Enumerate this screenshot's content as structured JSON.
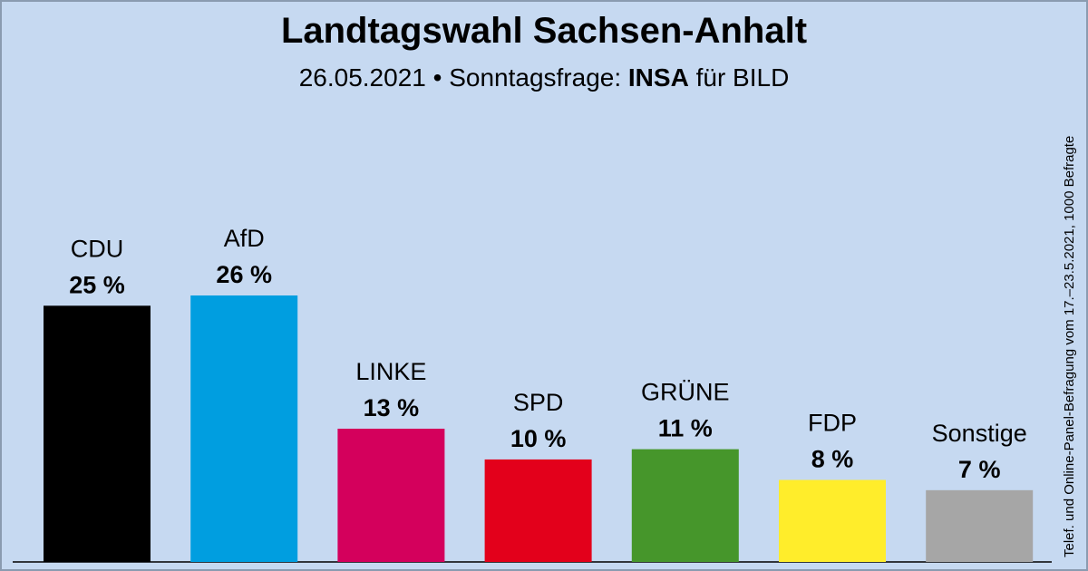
{
  "title": "Landtagswahl Sachsen-Anhalt",
  "subtitle": {
    "prefix": "26.05.2021 • Sonntagsfrage:",
    "institute": "INSA",
    "suffix": "für BILD"
  },
  "source_note": "Telef. und Online-Panel-Befragung vom 17.–23.5.2021, 1000 Befragte",
  "chart_data": {
    "type": "bar",
    "title": "Landtagswahl Sachsen-Anhalt",
    "categories": [
      "CDU",
      "AfD",
      "LINKE",
      "SPD",
      "GRÜNE",
      "FDP",
      "Sonstige"
    ],
    "values": [
      25,
      26,
      13,
      10,
      11,
      8,
      7
    ],
    "value_labels": [
      "25 %",
      "26 %",
      "13 %",
      "10 %",
      "11 %",
      "8 %",
      "7 %"
    ],
    "colors": [
      "#000000",
      "#009ee0",
      "#d4005c",
      "#e3001b",
      "#46962b",
      "#ffed2b",
      "#a6a6a6"
    ],
    "xlabel": "",
    "ylabel": "",
    "ylim": [
      0,
      26
    ],
    "grid": false,
    "legend": "none"
  }
}
